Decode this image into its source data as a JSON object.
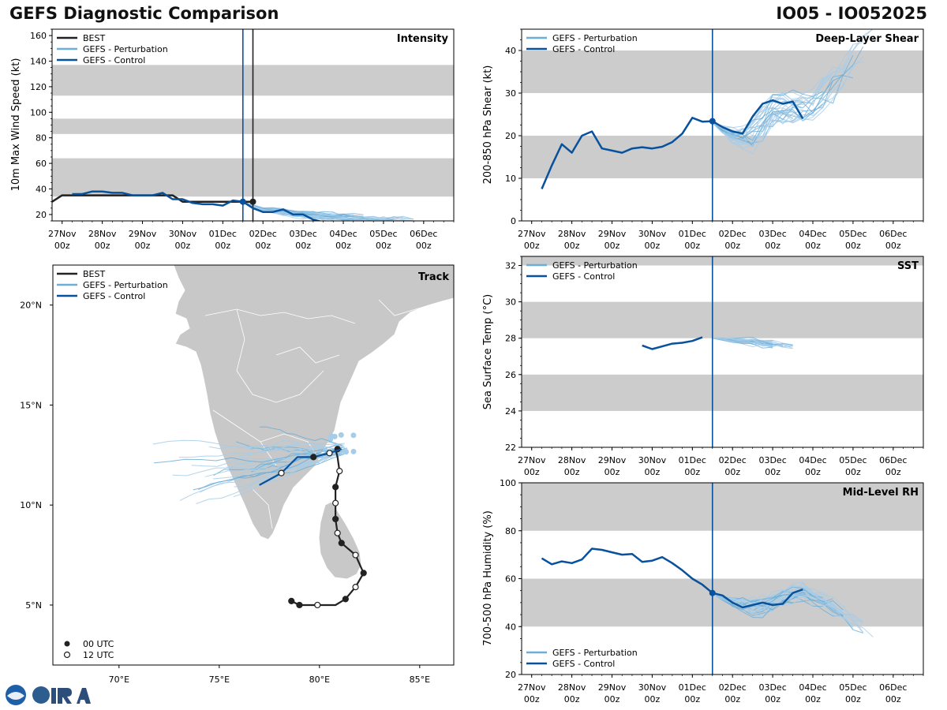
{
  "header": {
    "title": "GEFS Diagnostic Comparison",
    "storm_id": "IO05 - IO052025"
  },
  "colors": {
    "best": "#222222",
    "perturbation": "#6baed6",
    "perturbation_light": "#a6cce8",
    "control": "#08519c",
    "band": "#cccccc",
    "land": "#c8c8c8"
  },
  "legend": {
    "best": "BEST",
    "perturbation": "GEFS - Perturbation",
    "control": "GEFS - Control",
    "utc00": "00 UTC",
    "utc12": "12 UTC"
  },
  "time_ticks": [
    {
      "day": 0,
      "top": "27Nov",
      "bottom": "00z"
    },
    {
      "day": 1,
      "top": "28Nov",
      "bottom": "00z"
    },
    {
      "day": 2,
      "top": "29Nov",
      "bottom": "00z"
    },
    {
      "day": 3,
      "top": "30Nov",
      "bottom": "00z"
    },
    {
      "day": 4,
      "top": "01Dec",
      "bottom": "00z"
    },
    {
      "day": 5,
      "top": "02Dec",
      "bottom": "00z"
    },
    {
      "day": 6,
      "top": "03Dec",
      "bottom": "00z"
    },
    {
      "day": 7,
      "top": "04Dec",
      "bottom": "00z"
    },
    {
      "day": 8,
      "top": "05Dec",
      "bottom": "00z"
    },
    {
      "day": 9,
      "top": "06Dec",
      "bottom": "00z"
    }
  ],
  "chart_data": [
    {
      "id": "intensity",
      "type": "line",
      "title": "Intensity",
      "ylabel": "10m Max Wind Speed (kt)",
      "xlim": [
        -0.25,
        9.75
      ],
      "ylim": [
        15,
        165
      ],
      "yticks": [
        20,
        40,
        60,
        80,
        100,
        120,
        140,
        160
      ],
      "bands": [
        [
          34,
          64
        ],
        [
          83,
          95
        ],
        [
          113,
          137
        ]
      ],
      "vlines": [
        {
          "x": 4.5,
          "color": "control"
        },
        {
          "x": 4.75,
          "color": "best"
        }
      ],
      "series": [
        {
          "name": "BEST",
          "color": "best",
          "width": 2.5,
          "points": [
            [
              -0.25,
              30
            ],
            [
              0,
              35
            ],
            [
              0.25,
              35
            ],
            [
              0.5,
              35
            ],
            [
              0.75,
              35
            ],
            [
              1,
              35
            ],
            [
              1.25,
              35
            ],
            [
              1.5,
              35
            ],
            [
              1.75,
              35
            ],
            [
              2,
              35
            ],
            [
              2.25,
              35
            ],
            [
              2.5,
              35
            ],
            [
              2.75,
              35
            ],
            [
              3,
              30
            ],
            [
              3.25,
              30
            ],
            [
              3.5,
              30
            ],
            [
              3.75,
              30
            ],
            [
              4,
              30
            ],
            [
              4.25,
              30
            ],
            [
              4.5,
              30
            ],
            [
              4.75,
              30
            ]
          ],
          "end_marker": [
            4.75,
            30
          ]
        },
        {
          "name": "GEFS - Control",
          "color": "control",
          "width": 2.5,
          "points": [
            [
              0.25,
              36
            ],
            [
              0.5,
              36
            ],
            [
              0.75,
              38
            ],
            [
              1,
              38
            ],
            [
              1.25,
              37
            ],
            [
              1.5,
              37
            ],
            [
              1.75,
              35
            ],
            [
              2,
              35
            ],
            [
              2.25,
              35
            ],
            [
              2.5,
              37
            ],
            [
              2.75,
              32
            ],
            [
              3,
              32
            ],
            [
              3.25,
              29
            ],
            [
              3.5,
              28
            ],
            [
              3.75,
              28
            ],
            [
              4,
              27
            ],
            [
              4.25,
              31
            ],
            [
              4.5,
              30
            ],
            [
              4.75,
              25
            ],
            [
              5,
              22
            ],
            [
              5.25,
              22
            ],
            [
              5.5,
              24
            ],
            [
              5.75,
              20
            ],
            [
              6,
              20
            ],
            [
              6.25,
              16
            ],
            [
              6.5,
              14
            ]
          ],
          "marker": [
            4.5,
            30
          ]
        }
      ],
      "ensemble": {
        "color": "perturbation",
        "start": [
          4.5,
          30
        ],
        "length": [
          2.5,
          4.5
        ],
        "trend": [
          [
            0,
            30
          ],
          [
            0.5,
            24
          ],
          [
            1.5,
            20
          ],
          [
            3,
            17
          ],
          [
            4.5,
            15
          ]
        ],
        "spread": 3
      }
    },
    {
      "id": "shear",
      "type": "line",
      "title": "Deep-Layer Shear",
      "ylabel": "200-850 hPa Shear (kt)",
      "xlim": [
        -0.25,
        9.75
      ],
      "ylim": [
        0,
        45
      ],
      "yticks": [
        0,
        10,
        20,
        30,
        40
      ],
      "bands": [
        [
          10,
          20
        ],
        [
          30,
          40
        ]
      ],
      "vlines": [
        {
          "x": 4.5,
          "color": "control"
        }
      ],
      "series": [
        {
          "name": "GEFS - Control",
          "color": "control",
          "width": 2.5,
          "points": [
            [
              0.25,
              7.5
            ],
            [
              0.5,
              13
            ],
            [
              0.75,
              18
            ],
            [
              1,
              16
            ],
            [
              1.25,
              20
            ],
            [
              1.5,
              21
            ],
            [
              1.75,
              17
            ],
            [
              2,
              16.5
            ],
            [
              2.25,
              16
            ],
            [
              2.5,
              17
            ],
            [
              2.75,
              17.3
            ],
            [
              3,
              17
            ],
            [
              3.25,
              17.4
            ],
            [
              3.5,
              18.5
            ],
            [
              3.75,
              20.5
            ],
            [
              4,
              24.2
            ],
            [
              4.25,
              23.3
            ],
            [
              4.5,
              23.4
            ],
            [
              4.75,
              22
            ],
            [
              5,
              21
            ],
            [
              5.25,
              20.5
            ],
            [
              5.5,
              24.5
            ],
            [
              5.75,
              27.5
            ],
            [
              6,
              28.3
            ],
            [
              6.25,
              27.5
            ],
            [
              6.5,
              28
            ],
            [
              6.75,
              24
            ]
          ],
          "marker": [
            4.5,
            23.4
          ]
        }
      ],
      "ensemble": {
        "color": "perturbation",
        "start": [
          4.5,
          23
        ],
        "length": [
          2,
          4.2
        ],
        "trend": [
          [
            0,
            23
          ],
          [
            0.5,
            20
          ],
          [
            1,
            20
          ],
          [
            1.5,
            26
          ],
          [
            2.5,
            27
          ],
          [
            3.5,
            38
          ],
          [
            4.2,
            45
          ]
        ],
        "spread": 4
      }
    },
    {
      "id": "sst",
      "type": "line",
      "title": "SST",
      "ylabel": "Sea Surface Temp (°C)",
      "xlim": [
        -0.25,
        9.75
      ],
      "ylim": [
        22,
        32.5
      ],
      "yticks": [
        22,
        24,
        26,
        28,
        30,
        32
      ],
      "bands": [
        [
          24,
          26
        ],
        [
          28,
          30
        ],
        [
          32,
          33
        ]
      ],
      "vlines": [
        {
          "x": 4.5,
          "color": "control"
        }
      ],
      "series": [
        {
          "name": "GEFS - Control",
          "color": "control",
          "width": 2.5,
          "points": [
            [
              2.75,
              27.6
            ],
            [
              3,
              27.4
            ],
            [
              3.25,
              27.55
            ],
            [
              3.5,
              27.7
            ],
            [
              3.75,
              27.75
            ],
            [
              4,
              27.85
            ],
            [
              4.25,
              28.05
            ]
          ]
        }
      ],
      "ensemble": {
        "color": "perturbation",
        "start": [
          4.5,
          28
        ],
        "length": [
          1.5,
          2.2
        ],
        "trend": [
          [
            0,
            28
          ],
          [
            0.5,
            27.9
          ],
          [
            1,
            27.8
          ],
          [
            1.6,
            27.6
          ],
          [
            2.2,
            27.5
          ]
        ],
        "spread": 0.25
      }
    },
    {
      "id": "rh",
      "type": "line",
      "title": "Mid-Level RH",
      "ylabel": "700-500 hPa Humidity (%)",
      "xlim": [
        -0.25,
        9.75
      ],
      "ylim": [
        20,
        100
      ],
      "yticks": [
        20,
        40,
        60,
        80,
        100
      ],
      "bands": [
        [
          40,
          60
        ],
        [
          80,
          100
        ]
      ],
      "vlines": [
        {
          "x": 4.5,
          "color": "control"
        }
      ],
      "series": [
        {
          "name": "GEFS - Control",
          "color": "control",
          "width": 2.5,
          "points": [
            [
              0.25,
              68.5
            ],
            [
              0.5,
              66
            ],
            [
              0.75,
              67.2
            ],
            [
              1,
              66.5
            ],
            [
              1.25,
              68
            ],
            [
              1.5,
              72.5
            ],
            [
              1.75,
              72
            ],
            [
              2,
              71
            ],
            [
              2.25,
              70
            ],
            [
              2.5,
              70.3
            ],
            [
              2.75,
              67
            ],
            [
              3,
              67.5
            ],
            [
              3.25,
              69
            ],
            [
              3.5,
              66.5
            ],
            [
              3.75,
              63.5
            ],
            [
              4,
              60
            ],
            [
              4.25,
              57.5
            ],
            [
              4.5,
              54
            ],
            [
              4.75,
              53
            ],
            [
              5,
              50
            ],
            [
              5.25,
              48
            ],
            [
              5.5,
              49
            ],
            [
              5.75,
              50
            ],
            [
              6,
              49
            ],
            [
              6.25,
              49.5
            ],
            [
              6.5,
              54
            ],
            [
              6.75,
              55.5
            ]
          ],
          "marker": [
            4.5,
            54
          ]
        }
      ],
      "ensemble": {
        "color": "perturbation",
        "start": [
          4.5,
          54
        ],
        "length": [
          2,
          4.2
        ],
        "trend": [
          [
            0,
            54
          ],
          [
            0.5,
            50
          ],
          [
            1.2,
            48
          ],
          [
            2.2,
            55
          ],
          [
            3,
            48
          ],
          [
            4.2,
            33
          ]
        ],
        "spread": 4
      }
    },
    {
      "id": "track",
      "type": "scatter",
      "title": "Track",
      "xlim": [
        66.7,
        86.7
      ],
      "ylim": [
        2,
        22
      ],
      "xticks": [
        {
          "v": 70,
          "label": "70°E"
        },
        {
          "v": 75,
          "label": "75°E"
        },
        {
          "v": 80,
          "label": "80°E"
        },
        {
          "v": 85,
          "label": "85°E"
        }
      ],
      "yticks": [
        {
          "v": 5,
          "label": "5°N"
        },
        {
          "v": 10,
          "label": "10°N"
        },
        {
          "v": 15,
          "label": "15°N"
        },
        {
          "v": 20,
          "label": "20°N"
        }
      ],
      "best_track": [
        [
          78.6,
          5.2
        ],
        [
          79,
          5
        ],
        [
          79.9,
          5
        ],
        [
          80.8,
          5
        ],
        [
          81.3,
          5.3
        ],
        [
          81.8,
          5.9
        ],
        [
          82.2,
          6.6
        ],
        [
          81.8,
          7.5
        ],
        [
          81.1,
          8.1
        ],
        [
          80.9,
          8.6
        ],
        [
          80.8,
          9.3
        ],
        [
          80.8,
          10.1
        ],
        [
          80.8,
          10.9
        ],
        [
          81,
          11.7
        ],
        [
          80.9,
          12.4
        ],
        [
          80.8,
          12.8
        ]
      ],
      "best_markers": [
        [
          78.6,
          5.2,
          "00"
        ],
        [
          79,
          5,
          "00"
        ],
        [
          79.9,
          5,
          "12"
        ],
        [
          81.3,
          5.3,
          "00"
        ],
        [
          81.8,
          5.9,
          "12"
        ],
        [
          82.2,
          6.6,
          "00"
        ],
        [
          81.8,
          7.5,
          "12"
        ],
        [
          81.1,
          8.1,
          "00"
        ],
        [
          80.9,
          8.6,
          "12"
        ],
        [
          80.8,
          9.3,
          "00"
        ],
        [
          80.8,
          10.1,
          "12"
        ],
        [
          80.8,
          10.9,
          "00"
        ],
        [
          81,
          11.7,
          "12"
        ],
        [
          80.9,
          12.8,
          "00"
        ]
      ],
      "control_track": [
        [
          81.1,
          12.8
        ],
        [
          80.5,
          12.6
        ],
        [
          79.7,
          12.4
        ],
        [
          78.9,
          12.4
        ],
        [
          78.1,
          11.6
        ],
        [
          77,
          11
        ]
      ],
      "control_markers": [
        [
          80.5,
          12.6,
          "12"
        ],
        [
          79.7,
          12.4,
          "00"
        ],
        [
          78.1,
          11.6,
          "12"
        ]
      ],
      "ensemble": {
        "color": "perturbation",
        "start": [
          81.1,
          12.8
        ],
        "count": 30
      }
    }
  ]
}
